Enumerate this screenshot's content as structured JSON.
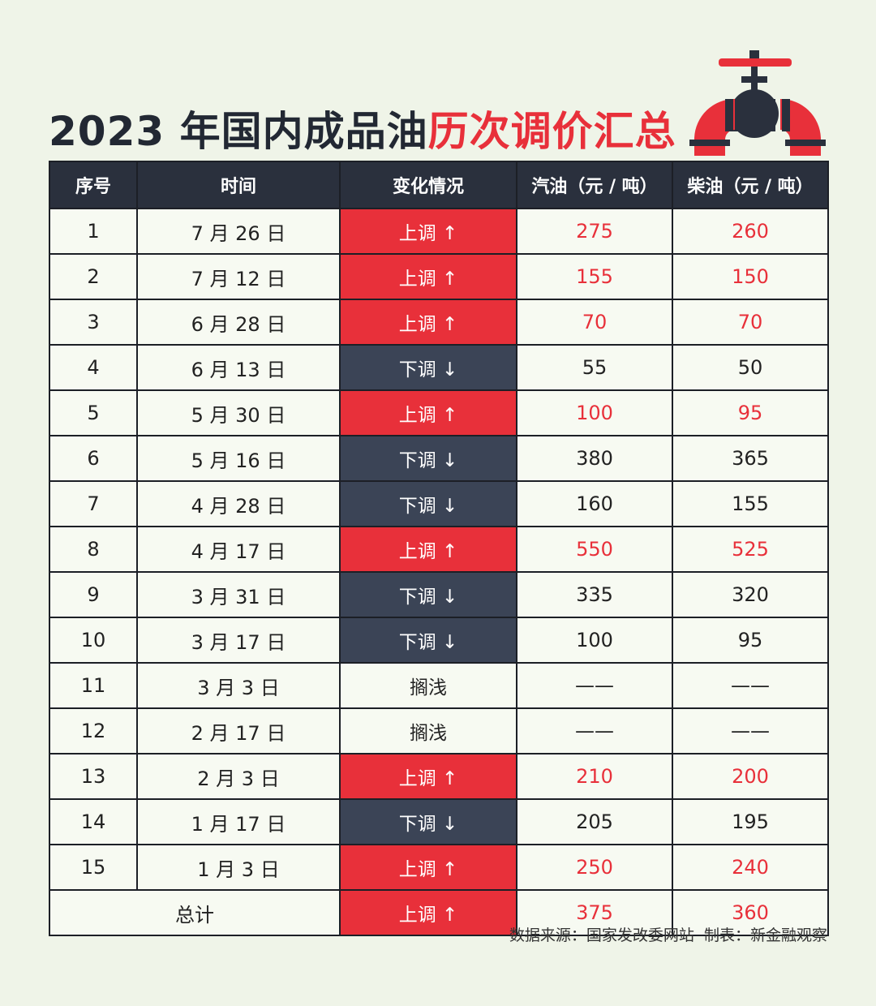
{
  "header": {
    "title_black": "2023 年国内成品油",
    "title_red": "历次调价汇总"
  },
  "table": {
    "columns": [
      "序号",
      "时间",
      "变化情况",
      "汽油（元 / 吨）",
      "柴油（元 / 吨）"
    ],
    "up_fill": "#e8303a",
    "down_fill": "#3b4456",
    "up_text": "#e8303a",
    "rows": [
      {
        "no": 1,
        "date": "7 月 26 日",
        "change": "上调 ↑",
        "gasoline": 275,
        "diesel": 260,
        "dir": "up"
      },
      {
        "no": 2,
        "date": "7 月 12 日",
        "change": "上调 ↑",
        "gasoline": 155,
        "diesel": 150,
        "dir": "up"
      },
      {
        "no": 3,
        "date": "6 月 28 日",
        "change": "上调 ↑",
        "gasoline": 70,
        "diesel": 70,
        "dir": "up"
      },
      {
        "no": 4,
        "date": "6 月 13 日",
        "change": "下调 ↓",
        "gasoline": 55,
        "diesel": 50,
        "dir": "down"
      },
      {
        "no": 5,
        "date": "5 月 30 日",
        "change": "上调 ↑",
        "gasoline": 100,
        "diesel": 95,
        "dir": "up"
      },
      {
        "no": 6,
        "date": "5 月 16 日",
        "change": "下调 ↓",
        "gasoline": 380,
        "diesel": 365,
        "dir": "down"
      },
      {
        "no": 7,
        "date": "4 月 28 日",
        "change": "下调 ↓",
        "gasoline": 160,
        "diesel": 155,
        "dir": "down"
      },
      {
        "no": 8,
        "date": "4 月 17 日",
        "change": "上调 ↑",
        "gasoline": 550,
        "diesel": 525,
        "dir": "up"
      },
      {
        "no": 9,
        "date": "3 月 31 日",
        "change": "下调 ↓",
        "gasoline": 335,
        "diesel": 320,
        "dir": "down"
      },
      {
        "no": 10,
        "date": "3 月 17 日",
        "change": "下调 ↓",
        "gasoline": 100,
        "diesel": 95,
        "dir": "down"
      },
      {
        "no": 11,
        "date": "3 月 3 日",
        "change": "搁浅",
        "gasoline": "——",
        "diesel": "——",
        "dir": "none"
      },
      {
        "no": 12,
        "date": "2 月 17 日",
        "change": "搁浅",
        "gasoline": "——",
        "diesel": "——",
        "dir": "none"
      },
      {
        "no": 13,
        "date": "2 月 3 日",
        "change": "上调 ↑",
        "gasoline": 210,
        "diesel": 200,
        "dir": "up"
      },
      {
        "no": 14,
        "date": "1 月 17 日",
        "change": "下调 ↓",
        "gasoline": 205,
        "diesel": 195,
        "dir": "down"
      },
      {
        "no": 15,
        "date": "1 月 3 日",
        "change": "上调 ↑",
        "gasoline": 250,
        "diesel": 240,
        "dir": "up"
      }
    ],
    "total": {
      "label": "总计",
      "change": "上调 ↑",
      "gasoline": 375,
      "diesel": 360,
      "dir": "up"
    }
  },
  "footer": {
    "source": "数据来源：国家发改委网站  制表：新金融观察"
  }
}
